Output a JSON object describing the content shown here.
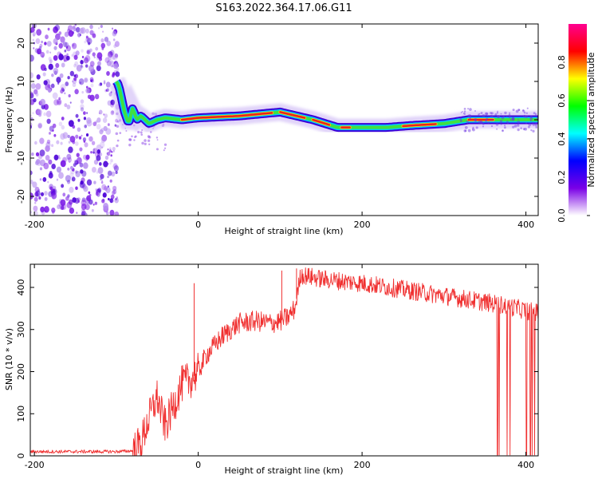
{
  "title": "S163.2022.364.17.06.G11",
  "chart_data": [
    {
      "type": "heatmap",
      "title": "S163.2022.364.17.06.G11",
      "xlabel": "Height of straight line (km)",
      "ylabel": "Frequency (Hz)",
      "xlim": [
        -205,
        415
      ],
      "ylim": [
        -25,
        25
      ],
      "xticks": [
        -200,
        0,
        200,
        400
      ],
      "yticks": [
        -20,
        -10,
        0,
        10,
        20
      ],
      "grid": false,
      "colorbar": {
        "label": "Normalized spectral amplitude",
        "range": [
          0,
          1
        ],
        "ticks": [
          "0.0",
          "0.2",
          "0.4",
          "0.6",
          "0.8"
        ],
        "colors": [
          "#ffffff",
          "#7a00e6",
          "#0000ff",
          "#00ffff",
          "#00ff00",
          "#ffff00",
          "#ff0000",
          "#ff0090"
        ]
      },
      "noise_region": {
        "x": [
          -205,
          -100
        ],
        "freq": [
          -25,
          25
        ],
        "color": "#6a00e0"
      },
      "ridge": {
        "x": [
          -100,
          -97,
          -93,
          -90,
          -85,
          -80,
          -75,
          -70,
          -60,
          -50,
          -40,
          -20,
          0,
          50,
          100,
          140,
          170,
          200,
          230,
          260,
          300,
          330,
          360,
          415
        ],
        "freq": [
          10,
          9,
          5,
          2,
          -1,
          3,
          0,
          1,
          -1,
          0,
          0.5,
          0,
          0.5,
          1,
          2,
          0,
          -2,
          -2,
          -2,
          -1.5,
          -1,
          0,
          0,
          0
        ],
        "peak_segments": [
          [
            -20,
            90
          ],
          [
            100,
            130
          ],
          [
            140,
            160
          ],
          [
            175,
            185
          ],
          [
            250,
            290
          ],
          [
            330,
            360
          ]
        ]
      }
    },
    {
      "type": "line",
      "xlabel": "Height of straight line (km)",
      "ylabel": "SNR (10 * v/v)",
      "xlim": [
        -205,
        415
      ],
      "ylim": [
        0,
        455
      ],
      "xticks": [
        -200,
        0,
        200,
        400
      ],
      "yticks": [
        0,
        100,
        200,
        300,
        400
      ],
      "grid": false,
      "color": "#f03030",
      "x": [
        -205,
        -150,
        -100,
        -80,
        -70,
        -60,
        -50,
        -45,
        -40,
        -30,
        -20,
        -10,
        0,
        10,
        30,
        50,
        70,
        90,
        100,
        110,
        118,
        125,
        150,
        200,
        250,
        300,
        350,
        365,
        380,
        400,
        415
      ],
      "snr": [
        10,
        10,
        10,
        12,
        30,
        90,
        140,
        100,
        70,
        120,
        170,
        180,
        200,
        240,
        285,
        315,
        320,
        315,
        320,
        330,
        350,
        430,
        420,
        410,
        395,
        380,
        365,
        360,
        355,
        345,
        340
      ],
      "spikes": [
        {
          "x": -5,
          "snr": 410
        },
        {
          "x": 102,
          "snr": 440
        },
        {
          "x": 120,
          "snr": 445
        }
      ],
      "dropouts_x": [
        365,
        415
      ]
    }
  ]
}
